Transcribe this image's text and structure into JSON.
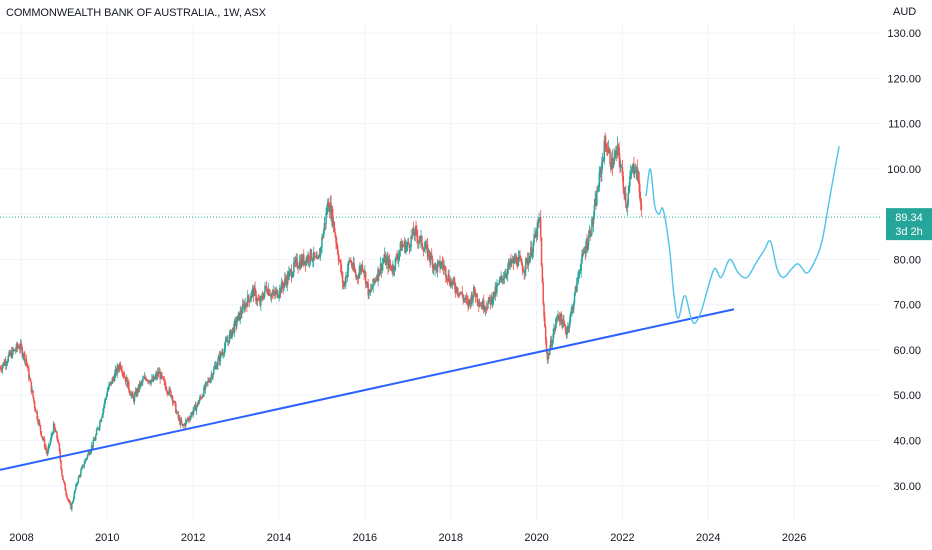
{
  "header": {
    "symbol_title": "COMMONWEALTH BANK OF AUSTRALIA., 1W, ASX",
    "currency": "AUD"
  },
  "price_badge": {
    "price": "89.34",
    "countdown": "3d 2h",
    "color": "#26a69a"
  },
  "colors": {
    "up": "#26a69a",
    "down": "#ef5350",
    "trendline": "#2962ff",
    "projection": "#4fc3e8",
    "grid": "#f0f3fa",
    "price_line": "#26a69a"
  },
  "chart_data": {
    "type": "candlestick",
    "title": "COMMONWEALTH BANK OF AUSTRALIA., 1W, ASX",
    "interval": "1W",
    "currency": "AUD",
    "x_ticks": [
      "2008",
      "2010",
      "2012",
      "2014",
      "2016",
      "2018",
      "2020",
      "2022",
      "2024",
      "2026"
    ],
    "y_ticks": [
      "30.00",
      "40.00",
      "50.00",
      "60.00",
      "70.00",
      "80.00",
      "90.00",
      "100.00",
      "110.00",
      "120.00",
      "130.00"
    ],
    "xlim": [
      2007.5,
      2028.0
    ],
    "ylim": [
      22,
      132
    ],
    "grid": true,
    "last_price": 89.34,
    "price_path": [
      [
        2007.5,
        56
      ],
      [
        2007.75,
        59
      ],
      [
        2007.95,
        61
      ],
      [
        2008.1,
        58
      ],
      [
        2008.3,
        48
      ],
      [
        2008.45,
        42
      ],
      [
        2008.6,
        37
      ],
      [
        2008.75,
        43
      ],
      [
        2008.85,
        40
      ],
      [
        2008.95,
        32
      ],
      [
        2009.05,
        28
      ],
      [
        2009.15,
        25
      ],
      [
        2009.3,
        31
      ],
      [
        2009.5,
        36
      ],
      [
        2009.7,
        40
      ],
      [
        2009.85,
        45
      ],
      [
        2010.0,
        51
      ],
      [
        2010.15,
        54
      ],
      [
        2010.3,
        57
      ],
      [
        2010.45,
        53
      ],
      [
        2010.6,
        49
      ],
      [
        2010.75,
        52
      ],
      [
        2010.9,
        54
      ],
      [
        2011.05,
        53
      ],
      [
        2011.2,
        55
      ],
      [
        2011.35,
        52
      ],
      [
        2011.5,
        50
      ],
      [
        2011.65,
        45
      ],
      [
        2011.75,
        43
      ],
      [
        2011.9,
        45
      ],
      [
        2012.1,
        48
      ],
      [
        2012.3,
        52
      ],
      [
        2012.5,
        56
      ],
      [
        2012.75,
        61
      ],
      [
        2013.0,
        66
      ],
      [
        2013.2,
        70
      ],
      [
        2013.4,
        73
      ],
      [
        2013.55,
        70
      ],
      [
        2013.7,
        74
      ],
      [
        2013.85,
        72
      ],
      [
        2014.0,
        73
      ],
      [
        2014.2,
        76
      ],
      [
        2014.4,
        79
      ],
      [
        2014.6,
        80
      ],
      [
        2014.75,
        81
      ],
      [
        2014.9,
        79
      ],
      [
        2015.05,
        87
      ],
      [
        2015.15,
        93
      ],
      [
        2015.25,
        89
      ],
      [
        2015.4,
        80
      ],
      [
        2015.5,
        74
      ],
      [
        2015.65,
        80
      ],
      [
        2015.8,
        76
      ],
      [
        2015.95,
        79
      ],
      [
        2016.1,
        72
      ],
      [
        2016.25,
        76
      ],
      [
        2016.45,
        80
      ],
      [
        2016.65,
        78
      ],
      [
        2016.85,
        83
      ],
      [
        2017.0,
        83
      ],
      [
        2017.15,
        86
      ],
      [
        2017.3,
        84
      ],
      [
        2017.5,
        81
      ],
      [
        2017.65,
        78
      ],
      [
        2017.8,
        79
      ],
      [
        2018.0,
        75
      ],
      [
        2018.2,
        73
      ],
      [
        2018.4,
        70
      ],
      [
        2018.55,
        73
      ],
      [
        2018.7,
        70
      ],
      [
        2018.85,
        70
      ],
      [
        2019.0,
        72
      ],
      [
        2019.2,
        76
      ],
      [
        2019.4,
        79
      ],
      [
        2019.55,
        80
      ],
      [
        2019.7,
        78
      ],
      [
        2019.85,
        81
      ],
      [
        2020.0,
        86
      ],
      [
        2020.08,
        89
      ],
      [
        2020.15,
        70
      ],
      [
        2020.25,
        58
      ],
      [
        2020.35,
        62
      ],
      [
        2020.5,
        68
      ],
      [
        2020.7,
        64
      ],
      [
        2020.85,
        70
      ],
      [
        2021.0,
        78
      ],
      [
        2021.15,
        83
      ],
      [
        2021.3,
        88
      ],
      [
        2021.45,
        97
      ],
      [
        2021.6,
        106
      ],
      [
        2021.75,
        101
      ],
      [
        2021.9,
        104
      ],
      [
        2022.0,
        98
      ],
      [
        2022.1,
        92
      ],
      [
        2022.2,
        99
      ],
      [
        2022.3,
        101
      ],
      [
        2022.38,
        97
      ],
      [
        2022.45,
        89.34
      ]
    ],
    "trendline": {
      "start": [
        2007.5,
        33.5
      ],
      "end": [
        2024.6,
        69
      ]
    },
    "projection": [
      [
        2022.55,
        94
      ],
      [
        2022.65,
        100
      ],
      [
        2022.75,
        92
      ],
      [
        2022.85,
        90
      ],
      [
        2022.95,
        91
      ],
      [
        2023.1,
        82
      ],
      [
        2023.2,
        72
      ],
      [
        2023.3,
        67
      ],
      [
        2023.45,
        72
      ],
      [
        2023.6,
        67
      ],
      [
        2023.7,
        66
      ],
      [
        2023.85,
        69
      ],
      [
        2024.0,
        74
      ],
      [
        2024.15,
        78
      ],
      [
        2024.3,
        76
      ],
      [
        2024.5,
        80
      ],
      [
        2024.7,
        77
      ],
      [
        2024.9,
        76
      ],
      [
        2025.1,
        79
      ],
      [
        2025.3,
        82
      ],
      [
        2025.45,
        84
      ],
      [
        2025.6,
        78
      ],
      [
        2025.75,
        76
      ],
      [
        2025.95,
        78
      ],
      [
        2026.1,
        79
      ],
      [
        2026.3,
        77
      ],
      [
        2026.5,
        80
      ],
      [
        2026.65,
        84
      ],
      [
        2026.8,
        92
      ],
      [
        2026.95,
        100
      ],
      [
        2027.05,
        105
      ]
    ]
  }
}
